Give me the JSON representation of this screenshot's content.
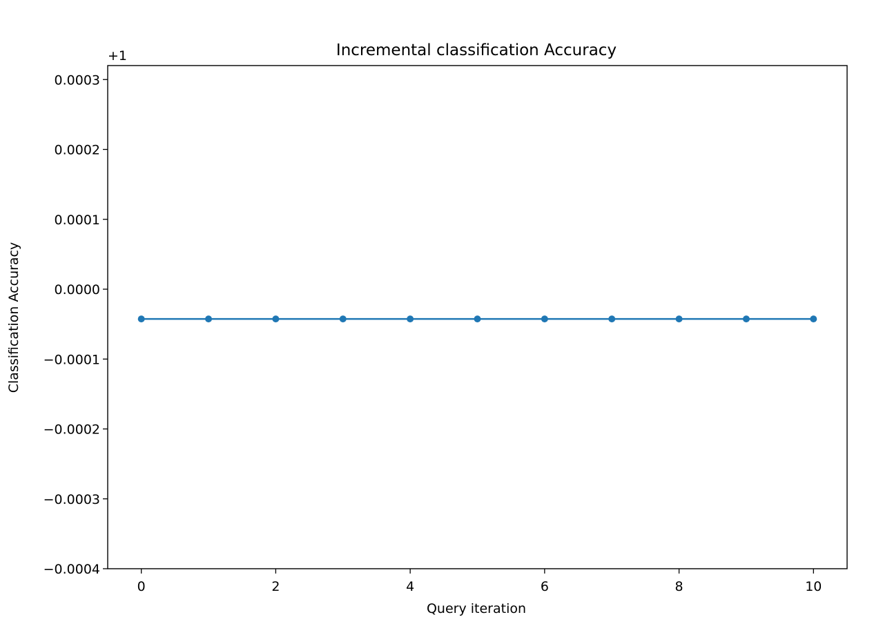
{
  "chart_data": {
    "type": "line",
    "title": "Incremental classification Accuracy",
    "xlabel": "Query iteration",
    "ylabel": "Classification Accuracy",
    "y_offset_label": "+1",
    "xlim": [
      -0.5,
      10.5
    ],
    "ylim": [
      -0.0004,
      0.00032
    ],
    "x_ticks": [
      0,
      2,
      4,
      6,
      8,
      10
    ],
    "x_tick_labels": [
      "0",
      "2",
      "4",
      "6",
      "8",
      "10"
    ],
    "y_ticks": [
      -0.0004,
      -0.0003,
      -0.0002,
      -0.0001,
      0.0,
      0.0001,
      0.0002,
      0.0003
    ],
    "y_tick_labels": [
      "−0.0004",
      "−0.0003",
      "−0.0002",
      "−0.0001",
      "0.0000",
      "0.0001",
      "0.0002",
      "0.0003"
    ],
    "grid": false,
    "legend": false,
    "series": [
      {
        "color": "#1f77b4",
        "marker": "circle",
        "x": [
          0,
          1,
          2,
          3,
          4,
          5,
          6,
          7,
          8,
          9,
          10
        ],
        "values": [
          -4.26e-05,
          -4.26e-05,
          -4.26e-05,
          -4.26e-05,
          -4.26e-05,
          -4.26e-05,
          -4.26e-05,
          -4.26e-05,
          -4.26e-05,
          -4.26e-05,
          -4.26e-05
        ]
      }
    ]
  }
}
